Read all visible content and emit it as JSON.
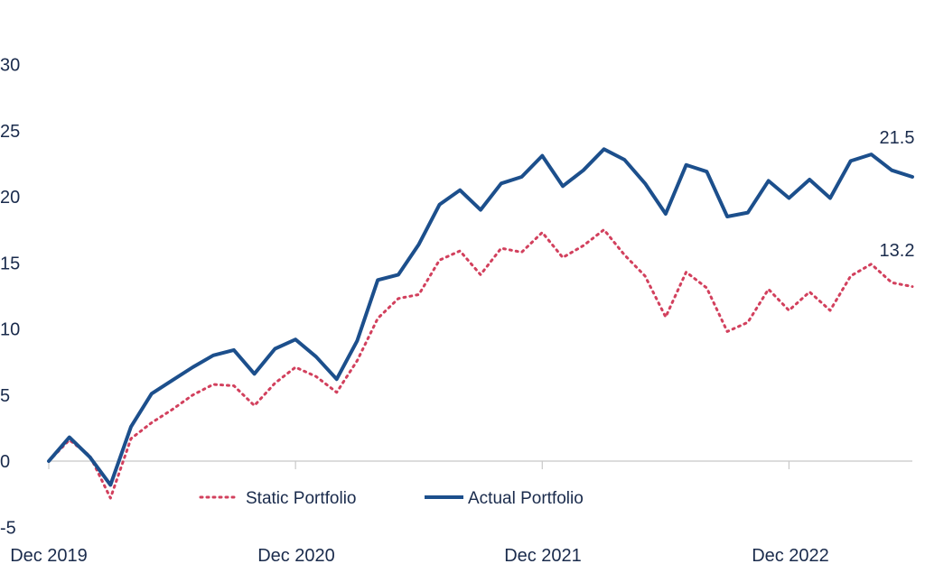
{
  "chart_data": {
    "type": "line",
    "xlabel": "",
    "ylabel": "",
    "ylim": [
      -5,
      30
    ],
    "yticks": [
      -5,
      0,
      5,
      10,
      15,
      20,
      25,
      30
    ],
    "xtick_labels": [
      "Dec 2019",
      "Dec 2020",
      "Dec 2021",
      "Dec 2022"
    ],
    "grid": false,
    "legend_position": "bottom-center",
    "colors": {
      "static": "#d2405d",
      "actual": "#1c4f8c",
      "axis": "#c8c8c8",
      "text": "#1a2b4c"
    },
    "series": [
      {
        "name": "Static Portfolio",
        "style": "dotted",
        "end_label": "13.2",
        "values": [
          0,
          1.6,
          0.4,
          -2.8,
          1.7,
          2.9,
          3.9,
          5.0,
          5.8,
          5.7,
          4.2,
          5.9,
          7.1,
          6.4,
          5.2,
          7.6,
          10.8,
          12.3,
          12.6,
          15.2,
          15.9,
          14.1,
          16.1,
          15.8,
          17.3,
          15.4,
          16.3,
          17.5,
          15.6,
          14.0,
          10.9,
          14.3,
          13.1,
          9.8,
          10.5,
          13.0,
          11.4,
          12.8,
          11.4,
          14.0,
          14.9,
          13.5,
          13.2
        ]
      },
      {
        "name": "Actual Portfolio",
        "style": "solid",
        "end_label": "21.5",
        "values": [
          0,
          1.8,
          0.3,
          -1.8,
          2.6,
          5.1,
          6.1,
          7.1,
          8.0,
          8.4,
          6.6,
          8.5,
          9.2,
          7.9,
          6.2,
          9.1,
          13.7,
          14.1,
          16.4,
          19.4,
          20.5,
          19.0,
          21.0,
          21.5,
          23.1,
          20.8,
          22.0,
          23.6,
          22.8,
          21.0,
          18.7,
          22.4,
          21.9,
          18.5,
          18.8,
          21.2,
          19.9,
          21.3,
          19.9,
          22.7,
          23.2,
          22.0,
          21.5
        ]
      }
    ]
  }
}
